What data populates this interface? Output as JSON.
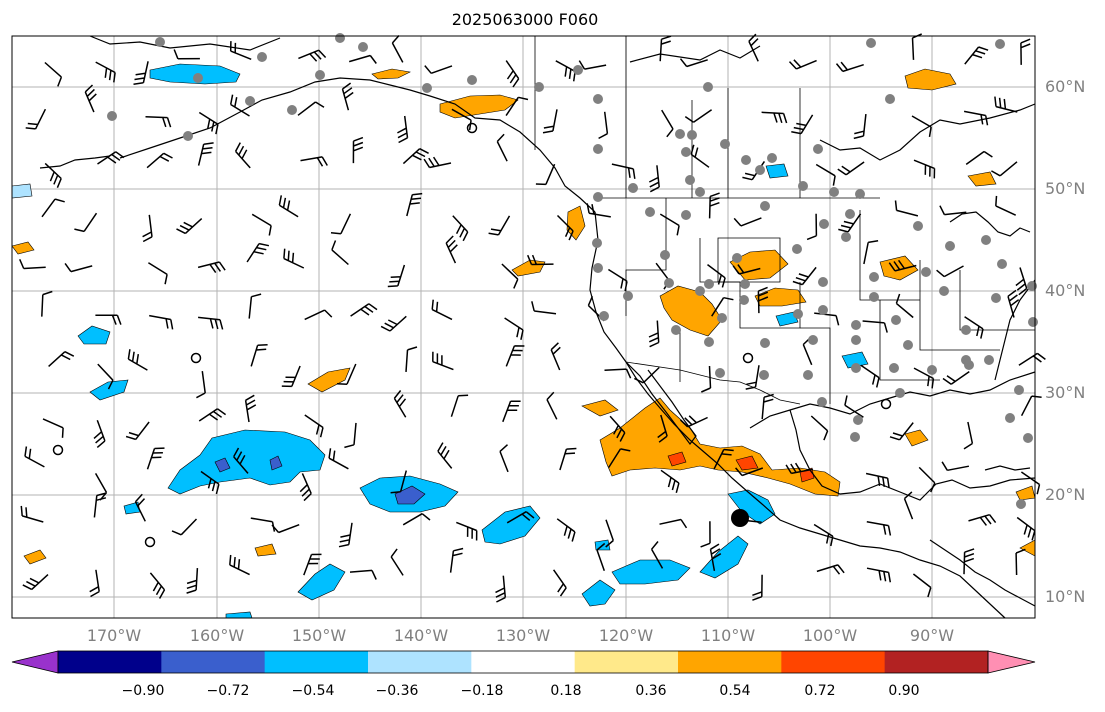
{
  "title": "2025063000 F060",
  "lat_labels": [
    "60°N",
    "50°N",
    "40°N",
    "30°N",
    "20°N",
    "10°N"
  ],
  "lon_labels": [
    "170°W",
    "160°W",
    "150°W",
    "140°W",
    "130°W",
    "120°W",
    "110°W",
    "100°W",
    "90°W"
  ],
  "colorbar": {
    "ticks": [
      "−0.90",
      "−0.72",
      "−0.54",
      "−0.36",
      "−0.18",
      "0.18",
      "0.36",
      "0.54",
      "0.72",
      "0.90"
    ],
    "colors": [
      "#9932cc",
      "#00008b",
      "#3a5fcd",
      "#00bfff",
      "#aee3ff",
      "#ffffff",
      "#ffe98a",
      "#ffa500",
      "#ff4500",
      "#b22222",
      "#ff8fb3"
    ]
  },
  "colors": {
    "grid": "#b3b3b3",
    "coast": "#000000",
    "station": "#808080",
    "label": "#808080"
  }
}
